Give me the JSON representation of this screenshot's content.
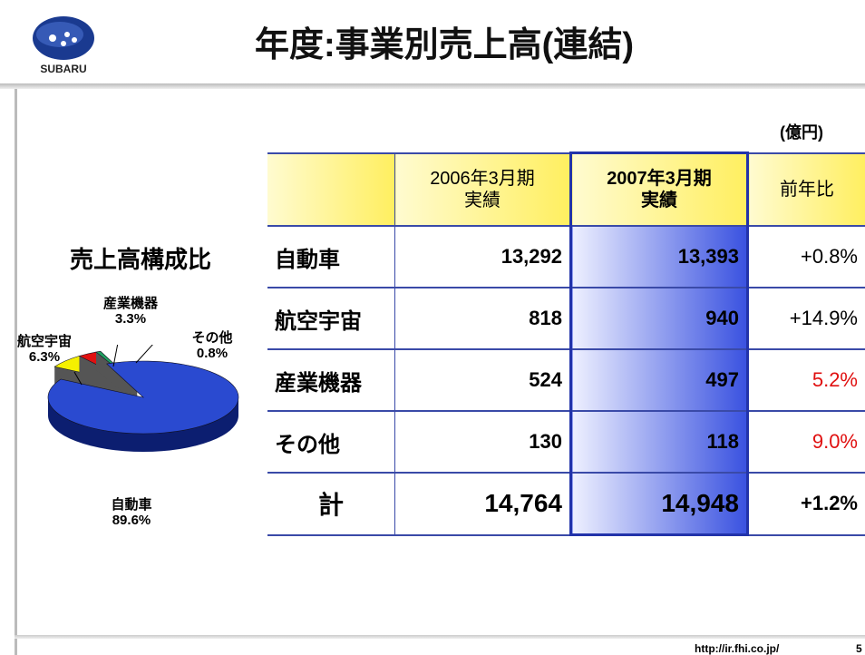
{
  "header": {
    "logo_text": "SUBARU",
    "title": "年度:事業別売上高(連結)"
  },
  "unit": "(億円)",
  "table": {
    "header": [
      "2006年3月期\n実績",
      "2007年3月期\n実績",
      "前年比"
    ],
    "rows": [
      [
        "自動車",
        "13,292",
        "13,393",
        "+0.8%"
      ],
      [
        "航空宇宙",
        "818",
        "940",
        "+14.9%"
      ],
      [
        "産業機器",
        "524",
        "497",
        "5.2%"
      ],
      [
        "その他",
        "130",
        "118",
        "9.0%"
      ],
      [
        "計",
        "14,764",
        "14,948",
        "+1.2%"
      ]
    ]
  },
  "pie": {
    "type": "pie",
    "title": "売上高構成比",
    "categories": [
      "自動車",
      "航空宇宙",
      "産業機器",
      "その他"
    ],
    "values": [
      89.6,
      6.3,
      3.3,
      0.8
    ],
    "value_labels": [
      "89.6%",
      "6.3%",
      "3.3%",
      "0.8%"
    ],
    "colors": [
      "#2a4ad0",
      "#f5f000",
      "#e01010",
      "#20a060"
    ]
  },
  "footer": {
    "url": "http://ir.fhi.co.jp/",
    "page": "5"
  }
}
